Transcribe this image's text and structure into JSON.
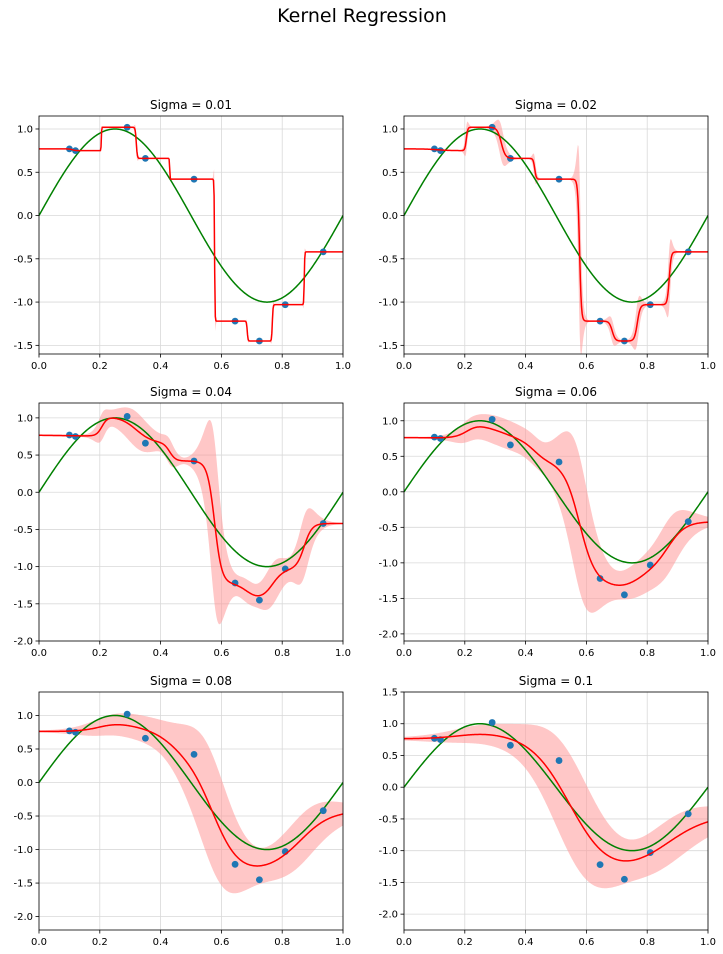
{
  "figure": {
    "title": "Kernel Regression"
  },
  "colors": {
    "true_function": "#008000",
    "kernel_estimate": "#ff0000",
    "uncertainty_band": "#ff9999",
    "observations": "#1f77b4",
    "grid": "#d9d9d9"
  },
  "chart_data": [
    {
      "type": "line",
      "title": "Sigma = 0.01",
      "sigma": 0.01,
      "xlim": [
        0,
        1
      ],
      "ylim": [
        -1.6,
        1.15
      ],
      "xticks": [
        "0.0",
        "0.2",
        "0.4",
        "0.6",
        "0.8",
        "1.0"
      ],
      "yticks": [
        "1.0",
        "0.5",
        "0.0",
        "-0.5",
        "-1.0",
        "-1.5"
      ],
      "grid": true,
      "series": [
        {
          "kind": "line",
          "label": "true function",
          "function": "sin(2*pi*x)"
        },
        {
          "kind": "line",
          "label": "kernel estimate"
        },
        {
          "kind": "band",
          "label": "uncertainty",
          "max_halfwidth": 0.45
        },
        {
          "kind": "scatter",
          "label": "observations"
        }
      ],
      "points_x": [
        0.1,
        0.12,
        0.29,
        0.35,
        0.51,
        0.645,
        0.725,
        0.81,
        0.935
      ],
      "points_y": [
        0.77,
        0.75,
        1.02,
        0.66,
        0.42,
        -1.22,
        -1.45,
        -1.03,
        -0.42
      ]
    },
    {
      "type": "line",
      "title": "Sigma = 0.02",
      "sigma": 0.02,
      "xlim": [
        0,
        1
      ],
      "ylim": [
        -1.6,
        1.15
      ],
      "xticks": [
        "0.0",
        "0.2",
        "0.4",
        "0.6",
        "0.8",
        "1.0"
      ],
      "yticks": [
        "1.0",
        "0.5",
        "0.0",
        "-0.5",
        "-1.0",
        "-1.5"
      ],
      "grid": true,
      "series": [
        {
          "kind": "line",
          "label": "true function",
          "function": "sin(2*pi*x)"
        },
        {
          "kind": "line",
          "label": "kernel estimate"
        },
        {
          "kind": "band",
          "label": "uncertainty",
          "max_halfwidth": 0.9
        },
        {
          "kind": "scatter",
          "label": "observations"
        }
      ],
      "points_x": [
        0.1,
        0.12,
        0.29,
        0.35,
        0.51,
        0.645,
        0.725,
        0.81,
        0.935
      ],
      "points_y": [
        0.77,
        0.75,
        1.02,
        0.66,
        0.42,
        -1.22,
        -1.45,
        -1.03,
        -0.42
      ]
    },
    {
      "type": "line",
      "title": "Sigma = 0.04",
      "sigma": 0.04,
      "xlim": [
        0,
        1
      ],
      "ylim": [
        -2.0,
        1.2
      ],
      "xticks": [
        "0.0",
        "0.2",
        "0.4",
        "0.6",
        "0.8",
        "1.0"
      ],
      "yticks": [
        "1.0",
        "0.5",
        "0.0",
        "-0.5",
        "-1.0",
        "-1.5",
        "-2.0"
      ],
      "grid": true,
      "series": [
        {
          "kind": "line",
          "label": "true function",
          "function": "sin(2*pi*x)"
        },
        {
          "kind": "line",
          "label": "kernel estimate"
        },
        {
          "kind": "band",
          "label": "uncertainty",
          "max_halfwidth": 1.1
        },
        {
          "kind": "scatter",
          "label": "observations"
        }
      ],
      "points_x": [
        0.1,
        0.12,
        0.29,
        0.35,
        0.51,
        0.645,
        0.725,
        0.81,
        0.935
      ],
      "points_y": [
        0.77,
        0.75,
        1.02,
        0.66,
        0.42,
        -1.22,
        -1.45,
        -1.03,
        -0.42
      ]
    },
    {
      "type": "line",
      "title": "Sigma = 0.06",
      "sigma": 0.06,
      "xlim": [
        0,
        1
      ],
      "ylim": [
        -2.1,
        1.25
      ],
      "xticks": [
        "0.0",
        "0.2",
        "0.4",
        "0.6",
        "0.8",
        "1.0"
      ],
      "yticks": [
        "1.0",
        "0.5",
        "0.0",
        "-0.5",
        "-1.0",
        "-1.5",
        "-2.0"
      ],
      "grid": true,
      "series": [
        {
          "kind": "line",
          "label": "true function",
          "function": "sin(2*pi*x)"
        },
        {
          "kind": "line",
          "label": "kernel estimate"
        },
        {
          "kind": "band",
          "label": "uncertainty",
          "max_halfwidth": 0.95
        },
        {
          "kind": "scatter",
          "label": "observations"
        }
      ],
      "points_x": [
        0.1,
        0.12,
        0.29,
        0.35,
        0.51,
        0.645,
        0.725,
        0.81,
        0.935
      ],
      "points_y": [
        0.77,
        0.75,
        1.02,
        0.66,
        0.42,
        -1.22,
        -1.45,
        -1.03,
        -0.42
      ]
    },
    {
      "type": "line",
      "title": "Sigma = 0.08",
      "sigma": 0.08,
      "xlim": [
        0,
        1
      ],
      "ylim": [
        -2.2,
        1.35
      ],
      "xticks": [
        "0.0",
        "0.2",
        "0.4",
        "0.6",
        "0.8",
        "1.0"
      ],
      "yticks": [
        "1.0",
        "0.5",
        "0.0",
        "-0.5",
        "-1.0",
        "-1.5",
        "-2.0"
      ],
      "grid": true,
      "series": [
        {
          "kind": "line",
          "label": "true function",
          "function": "sin(2*pi*x)"
        },
        {
          "kind": "line",
          "label": "kernel estimate"
        },
        {
          "kind": "band",
          "label": "uncertainty",
          "max_halfwidth": 0.85
        },
        {
          "kind": "scatter",
          "label": "observations"
        }
      ],
      "points_x": [
        0.1,
        0.12,
        0.29,
        0.35,
        0.51,
        0.645,
        0.725,
        0.81,
        0.935
      ],
      "points_y": [
        0.77,
        0.75,
        1.02,
        0.66,
        0.42,
        -1.22,
        -1.45,
        -1.03,
        -0.42
      ]
    },
    {
      "type": "line",
      "title": "Sigma = 0.1",
      "sigma": 0.1,
      "xlim": [
        0,
        1
      ],
      "ylim": [
        -2.25,
        1.5
      ],
      "xticks": [
        "0.0",
        "0.2",
        "0.4",
        "0.6",
        "0.8",
        "1.0"
      ],
      "yticks": [
        "1.5",
        "1.0",
        "0.5",
        "0.0",
        "-0.5",
        "-1.0",
        "-1.5",
        "-2.0"
      ],
      "grid": true,
      "series": [
        {
          "kind": "line",
          "label": "true function",
          "function": "sin(2*pi*x)"
        },
        {
          "kind": "line",
          "label": "kernel estimate"
        },
        {
          "kind": "band",
          "label": "uncertainty",
          "max_halfwidth": 0.8
        },
        {
          "kind": "scatter",
          "label": "observations"
        }
      ],
      "points_x": [
        0.1,
        0.12,
        0.29,
        0.35,
        0.51,
        0.645,
        0.725,
        0.81,
        0.935
      ],
      "points_y": [
        0.77,
        0.75,
        1.02,
        0.66,
        0.42,
        -1.22,
        -1.45,
        -1.03,
        -0.42
      ]
    }
  ]
}
